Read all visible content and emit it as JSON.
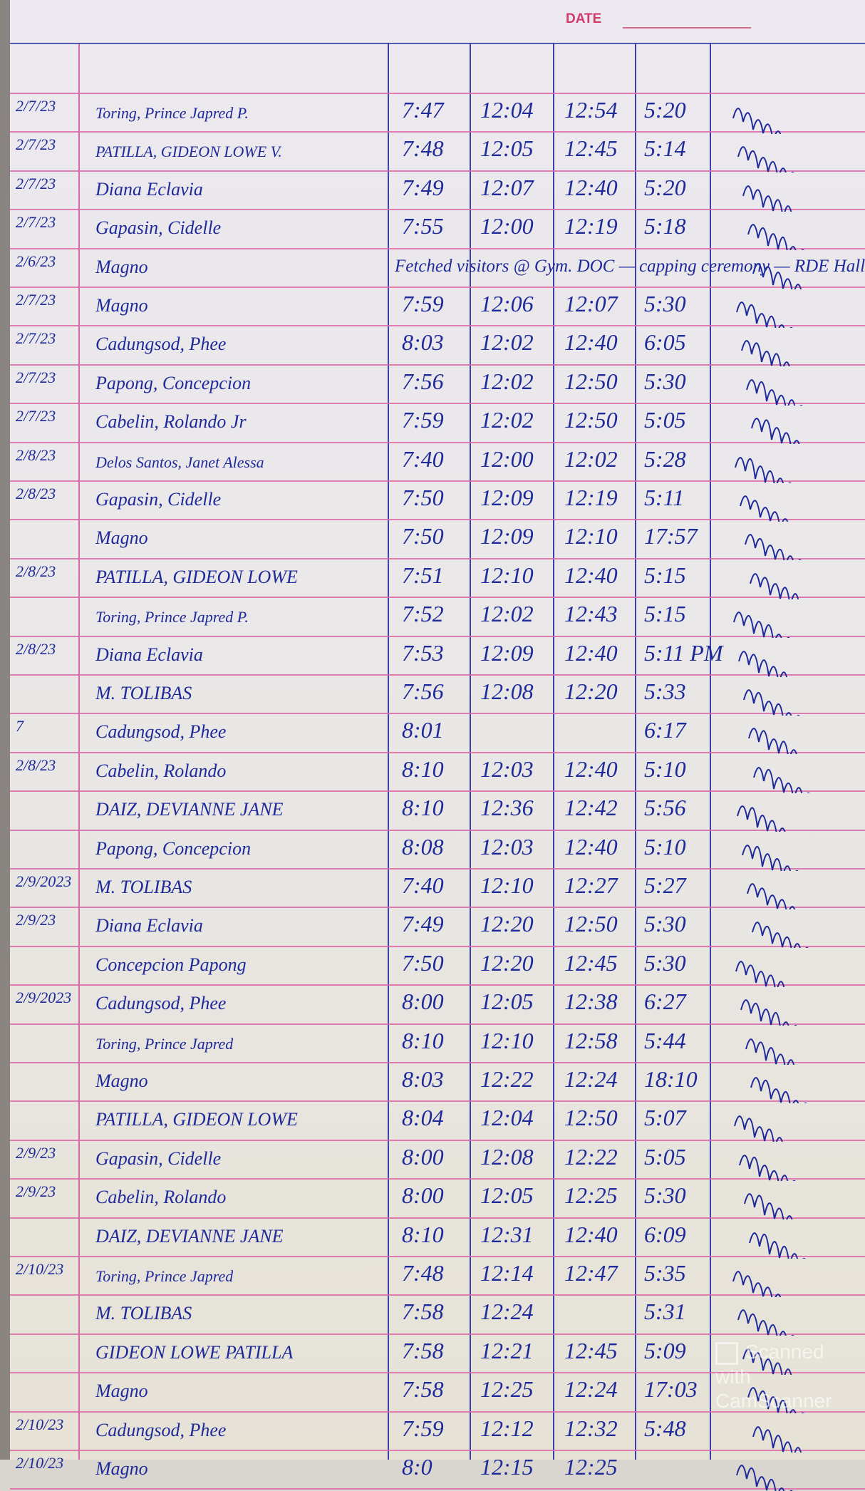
{
  "header": {
    "date_label": "DATE"
  },
  "note_row": {
    "date": "2/6/23",
    "name": "Magno",
    "note": "Fetched visitors @ Gym. DOC — capping ceremony — RDE Hall"
  },
  "rows": [
    {
      "date": "2/7/23",
      "name": "Toring, Prince Japred P.",
      "am_in": "7:47",
      "am_out": "12:04",
      "pm_in": "12:54",
      "pm_out": "5:20"
    },
    {
      "date": "2/7/23",
      "name": "PATILLA, GIDEON LOWE V.",
      "am_in": "7:48",
      "am_out": "12:05",
      "pm_in": "12:45",
      "pm_out": "5:14"
    },
    {
      "date": "2/7/23",
      "name": "Diana Eclavia",
      "am_in": "7:49",
      "am_out": "12:07",
      "pm_in": "12:40",
      "pm_out": "5:20"
    },
    {
      "date": "2/7/23",
      "name": "Gapasin, Cidelle",
      "am_in": "7:55",
      "am_out": "12:00",
      "pm_in": "12:19",
      "pm_out": "5:18"
    },
    {
      "note": true
    },
    {
      "date": "2/7/23",
      "name": "Magno",
      "am_in": "7:59",
      "am_out": "12:06",
      "pm_in": "12:07",
      "pm_out": "5:30"
    },
    {
      "date": "2/7/23",
      "name": "Cadungsod, Phee",
      "am_in": "8:03",
      "am_out": "12:02",
      "pm_in": "12:40",
      "pm_out": "6:05"
    },
    {
      "date": "2/7/23",
      "name": "Papong, Concepcion",
      "am_in": "7:56",
      "am_out": "12:02",
      "pm_in": "12:50",
      "pm_out": "5:30"
    },
    {
      "date": "2/7/23",
      "name": "Cabelin, Rolando Jr",
      "am_in": "7:59",
      "am_out": "12:02",
      "pm_in": "12:50",
      "pm_out": "5:05"
    },
    {
      "date": "2/8/23",
      "name": "Delos Santos, Janet Alessa",
      "am_in": "7:40",
      "am_out": "12:00",
      "pm_in": "12:02",
      "pm_out": "5:28"
    },
    {
      "date": "2/8/23",
      "name": "Gapasin, Cidelle",
      "am_in": "7:50",
      "am_out": "12:09",
      "pm_in": "12:19",
      "pm_out": "5:11"
    },
    {
      "date": "",
      "name": "Magno",
      "am_in": "7:50",
      "am_out": "12:09",
      "pm_in": "12:10",
      "pm_out": "17:57"
    },
    {
      "date": "2/8/23",
      "name": "PATILLA, GIDEON LOWE",
      "am_in": "7:51",
      "am_out": "12:10",
      "pm_in": "12:40",
      "pm_out": "5:15"
    },
    {
      "date": "",
      "name": "Toring, Prince Japred P.",
      "am_in": "7:52",
      "am_out": "12:02",
      "pm_in": "12:43",
      "pm_out": "5:15"
    },
    {
      "date": "2/8/23",
      "name": "Diana Eclavia",
      "am_in": "7:53",
      "am_out": "12:09",
      "pm_in": "12:40",
      "pm_out": "5:11 PM"
    },
    {
      "date": "",
      "name": "M. TOLIBAS",
      "am_in": "7:56",
      "am_out": "12:08",
      "pm_in": "12:20",
      "pm_out": "5:33"
    },
    {
      "date": "7",
      "name": "Cadungsod, Phee",
      "am_in": "8:01",
      "am_out": "",
      "pm_in": "",
      "pm_out": "6:17"
    },
    {
      "date": "2/8/23",
      "name": "Cabelin, Rolando",
      "am_in": "8:10",
      "am_out": "12:03",
      "pm_in": "12:40",
      "pm_out": "5:10"
    },
    {
      "date": "",
      "name": "DAIZ, DEVIANNE JANE",
      "am_in": "8:10",
      "am_out": "12:36",
      "pm_in": "12:42",
      "pm_out": "5:56"
    },
    {
      "date": "",
      "name": "Papong, Concepcion",
      "am_in": "8:08",
      "am_out": "12:03",
      "pm_in": "12:40",
      "pm_out": "5:10"
    },
    {
      "date": "2/9/2023",
      "name": "M. TOLIBAS",
      "am_in": "7:40",
      "am_out": "12:10",
      "pm_in": "12:27",
      "pm_out": "5:27"
    },
    {
      "date": "2/9/23",
      "name": "Diana Eclavia",
      "am_in": "7:49",
      "am_out": "12:20",
      "pm_in": "12:50",
      "pm_out": "5:30"
    },
    {
      "date": "",
      "name": "Concepcion Papong",
      "am_in": "7:50",
      "am_out": "12:20",
      "pm_in": "12:45",
      "pm_out": "5:30"
    },
    {
      "date": "2/9/2023",
      "name": "Cadungsod, Phee",
      "am_in": "8:00",
      "am_out": "12:05",
      "pm_in": "12:38",
      "pm_out": "6:27"
    },
    {
      "date": "",
      "name": "Toring, Prince Japred",
      "am_in": "8:10",
      "am_out": "12:10",
      "pm_in": "12:58",
      "pm_out": "5:44"
    },
    {
      "date": "",
      "name": "Magno",
      "am_in": "8:03",
      "am_out": "12:22",
      "pm_in": "12:24",
      "pm_out": "18:10"
    },
    {
      "date": "",
      "name": "PATILLA, GIDEON LOWE",
      "am_in": "8:04",
      "am_out": "12:04",
      "pm_in": "12:50",
      "pm_out": "5:07"
    },
    {
      "date": "2/9/23",
      "name": "Gapasin, Cidelle",
      "am_in": "8:00",
      "am_out": "12:08",
      "pm_in": "12:22",
      "pm_out": "5:05"
    },
    {
      "date": "2/9/23",
      "name": "Cabelin, Rolando",
      "am_in": "8:00",
      "am_out": "12:05",
      "pm_in": "12:25",
      "pm_out": "5:30"
    },
    {
      "date": "",
      "name": "DAIZ, DEVIANNE JANE",
      "am_in": "8:10",
      "am_out": "12:31",
      "pm_in": "12:40",
      "pm_out": "6:09"
    },
    {
      "date": "2/10/23",
      "name": "Toring, Prince Japred",
      "am_in": "7:48",
      "am_out": "12:14",
      "pm_in": "12:47",
      "pm_out": "5:35"
    },
    {
      "date": "",
      "name": "M. TOLIBAS",
      "am_in": "7:58",
      "am_out": "12:24",
      "pm_in": "",
      "pm_out": "5:31"
    },
    {
      "date": "",
      "name": "GIDEON LOWE PATILLA",
      "am_in": "7:58",
      "am_out": "12:21",
      "pm_in": "12:45",
      "pm_out": "5:09"
    },
    {
      "date": "",
      "name": "Magno",
      "am_in": "7:58",
      "am_out": "12:25",
      "pm_in": "12:24",
      "pm_out": "17:03"
    },
    {
      "date": "2/10/23",
      "name": "Cadungsod, Phee",
      "am_in": "7:59",
      "am_out": "12:12",
      "pm_in": "12:32",
      "pm_out": "5:48"
    },
    {
      "date": "2/10/23",
      "name": "Magno",
      "am_in": "8:0",
      "am_out": "12:15",
      "pm_in": "12:25",
      "pm_out": ""
    }
  ],
  "watermark": "Scanned with CamScanner",
  "colors": {
    "ink": "#1f2a9a",
    "rule": "#d96aa8",
    "column": "#3b3fa8",
    "paper": "#ebe8ea"
  }
}
